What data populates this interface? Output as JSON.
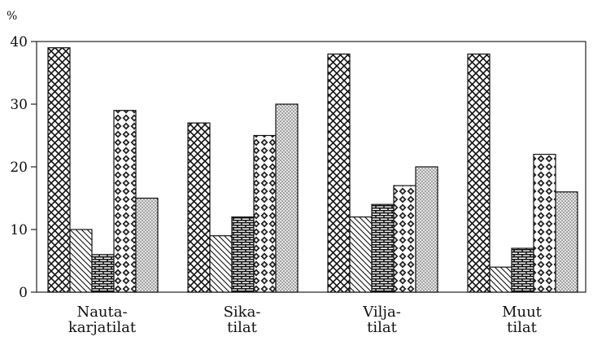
{
  "chart_data": {
    "type": "bar",
    "y_unit_label": "%",
    "categories": [
      [
        "Nauta-",
        "karjatilat"
      ],
      [
        "Sika-",
        "tilat"
      ],
      [
        "Vilja-",
        "tilat"
      ],
      [
        "Muut",
        "tilat"
      ]
    ],
    "series": [
      {
        "values": [
          39,
          27,
          38,
          38
        ],
        "pattern": "crosshatch"
      },
      {
        "values": [
          10,
          9,
          12,
          4
        ],
        "pattern": "diagonal"
      },
      {
        "values": [
          6,
          12,
          14,
          7
        ],
        "pattern": "brick"
      },
      {
        "values": [
          29,
          25,
          17,
          22
        ],
        "pattern": "diamond"
      },
      {
        "values": [
          15,
          30,
          20,
          16
        ],
        "pattern": "dots"
      }
    ],
    "ylim": [
      0,
      40
    ],
    "yticks": [
      "0",
      "10",
      "20",
      "30",
      "40"
    ],
    "grid": false,
    "legend": "none"
  }
}
